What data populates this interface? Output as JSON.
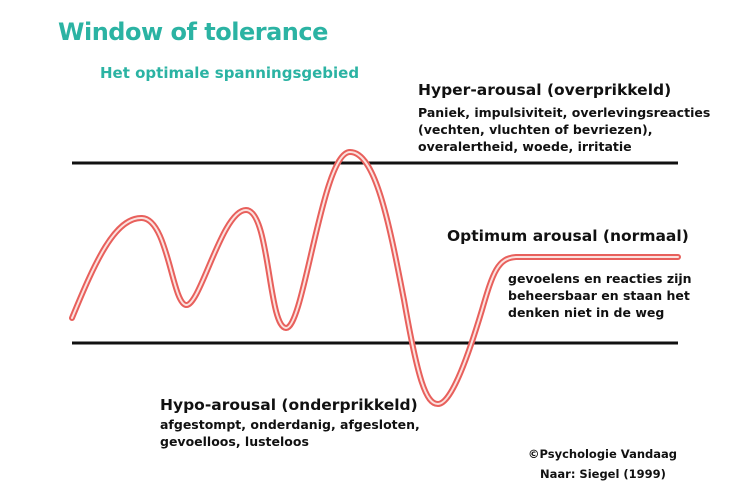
{
  "colors": {
    "title": "#2bb3a3",
    "wave": "#e8605c",
    "wave_inner": "#fbe2df",
    "boundary": "#111111"
  },
  "title": "Window of tolerance",
  "subtitle": "Het optimale spanningsgebied",
  "hyper": {
    "title": "Hyper-arousal (overprikkeld)",
    "description": "Paniek, impulsiviteit, overlevingsreacties (vechten, vluchten of bevriezen), overalertheid, woede, irritatie"
  },
  "optimum": {
    "title": "Optimum arousal (normaal)",
    "description": "gevoelens en reacties zijn beheersbaar en staan het denken niet in de weg"
  },
  "hypo": {
    "title": "Hypo-arousal (onderprikkeld)",
    "description": "afgestompt, onderdanig, afgesloten, gevoelloos, lusteloos"
  },
  "credits": {
    "copyright": "©Psychologie  Vandaag",
    "source": "Naar: Siegel (1999)"
  }
}
